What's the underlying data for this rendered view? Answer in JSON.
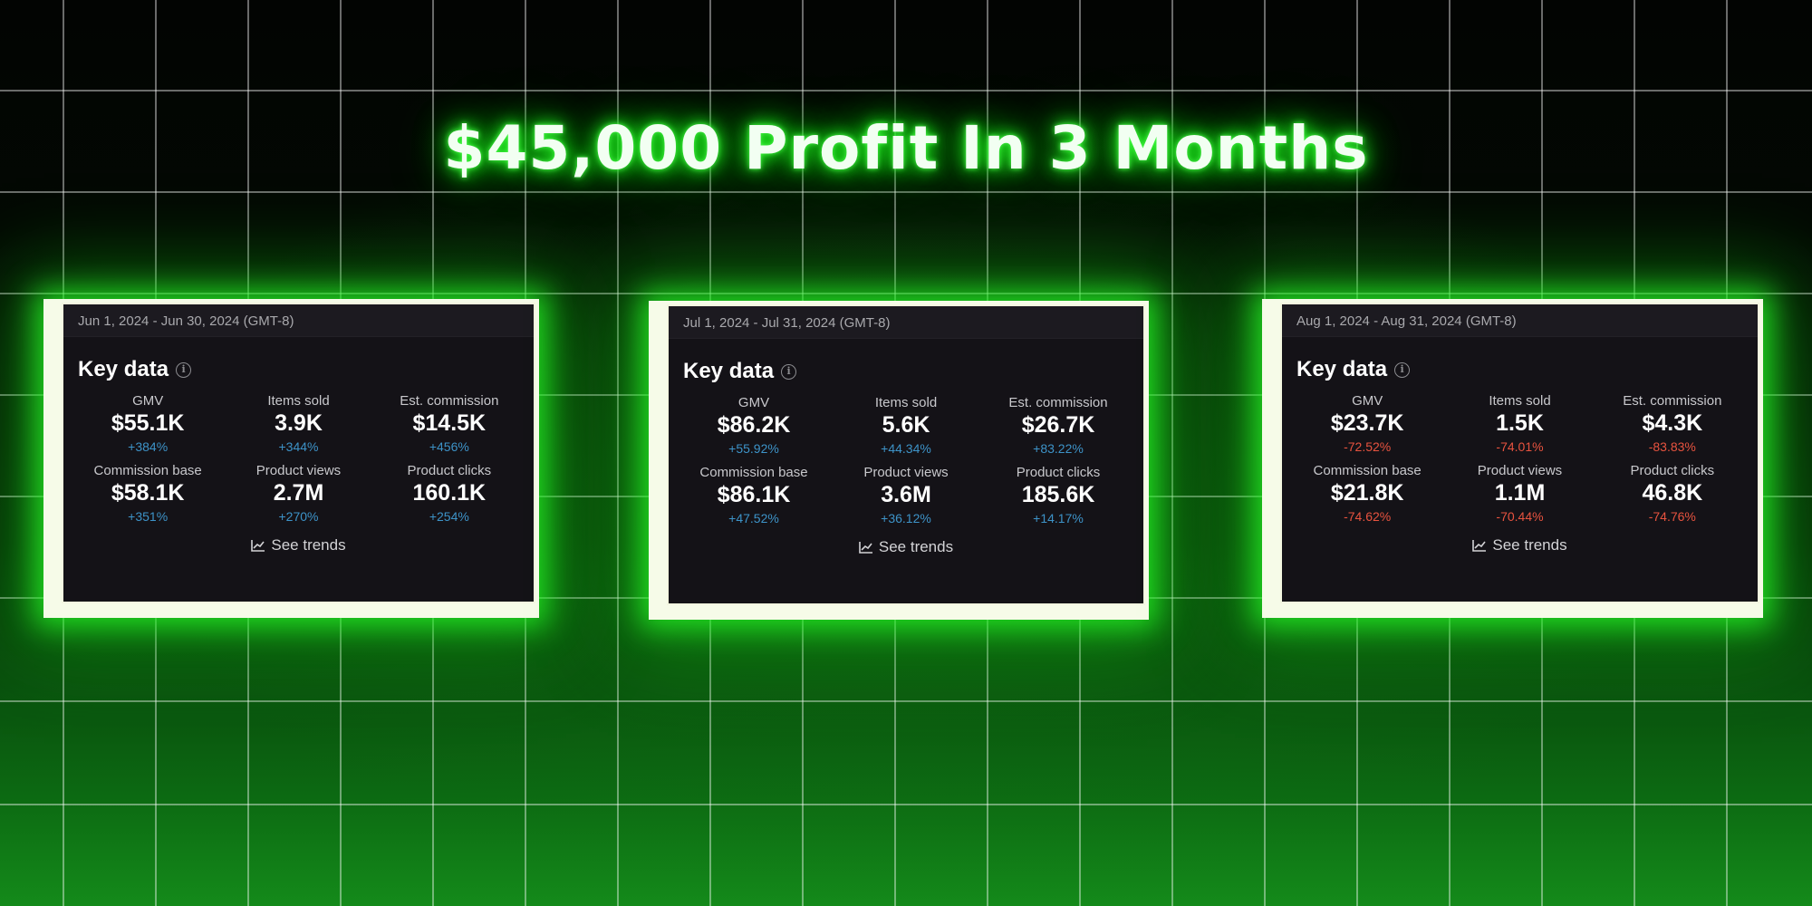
{
  "headline": "$45,000 Profit In 3 Months",
  "colors": {
    "glow": "#22ff22",
    "positive": "#3d93c8",
    "negative": "#e8533f",
    "card_bg": "#141217"
  },
  "icons": {
    "info": "info-icon",
    "trends": "line-chart-icon"
  },
  "cards": [
    {
      "date_range": "Jun 1, 2024 - Jun 30, 2024 (GMT-8)",
      "title": "Key data",
      "metrics": [
        {
          "label": "GMV",
          "value": "$55.1K",
          "change": "+384%",
          "trend": "up"
        },
        {
          "label": "Items sold",
          "value": "3.9K",
          "change": "+344%",
          "trend": "up"
        },
        {
          "label": "Est. commission",
          "value": "$14.5K",
          "change": "+456%",
          "trend": "up"
        },
        {
          "label": "Commission base",
          "value": "$58.1K",
          "change": "+351%",
          "trend": "up"
        },
        {
          "label": "Product views",
          "value": "2.7M",
          "change": "+270%",
          "trend": "up"
        },
        {
          "label": "Product clicks",
          "value": "160.1K",
          "change": "+254%",
          "trend": "up"
        }
      ],
      "trends_label": "See trends"
    },
    {
      "date_range": "Jul 1, 2024 - Jul 31, 2024 (GMT-8)",
      "title": "Key data",
      "metrics": [
        {
          "label": "GMV",
          "value": "$86.2K",
          "change": "+55.92%",
          "trend": "up"
        },
        {
          "label": "Items sold",
          "value": "5.6K",
          "change": "+44.34%",
          "trend": "up"
        },
        {
          "label": "Est. commission",
          "value": "$26.7K",
          "change": "+83.22%",
          "trend": "up"
        },
        {
          "label": "Commission base",
          "value": "$86.1K",
          "change": "+47.52%",
          "trend": "up"
        },
        {
          "label": "Product views",
          "value": "3.6M",
          "change": "+36.12%",
          "trend": "up"
        },
        {
          "label": "Product clicks",
          "value": "185.6K",
          "change": "+14.17%",
          "trend": "up"
        }
      ],
      "trends_label": "See trends"
    },
    {
      "date_range": "Aug 1, 2024 - Aug 31, 2024 (GMT-8)",
      "title": "Key data",
      "metrics": [
        {
          "label": "GMV",
          "value": "$23.7K",
          "change": "-72.52%",
          "trend": "down"
        },
        {
          "label": "Items sold",
          "value": "1.5K",
          "change": "-74.01%",
          "trend": "down"
        },
        {
          "label": "Est. commission",
          "value": "$4.3K",
          "change": "-83.83%",
          "trend": "down"
        },
        {
          "label": "Commission base",
          "value": "$21.8K",
          "change": "-74.62%",
          "trend": "down"
        },
        {
          "label": "Product views",
          "value": "1.1M",
          "change": "-70.44%",
          "trend": "down"
        },
        {
          "label": "Product clicks",
          "value": "46.8K",
          "change": "-74.76%",
          "trend": "down"
        }
      ],
      "trends_label": "See trends"
    }
  ]
}
